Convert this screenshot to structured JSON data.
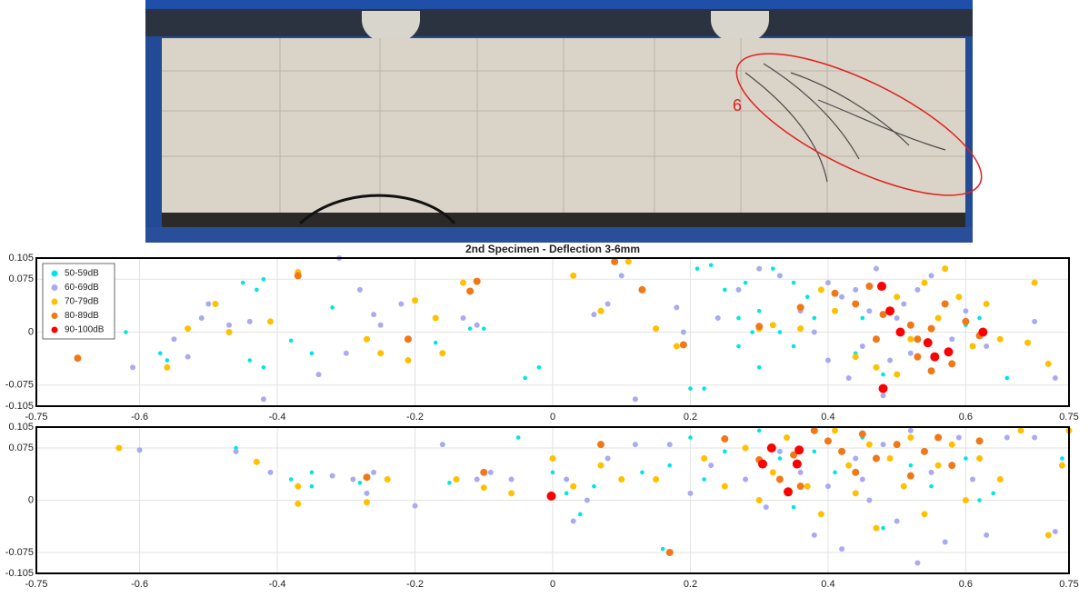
{
  "photo": {
    "annotation": "6"
  },
  "chart_data": [
    {
      "type": "scatter",
      "title": "2nd Specimen - Deflection 3-6mm",
      "xlim": [
        -0.75,
        0.75
      ],
      "xticks": [
        -0.75,
        -0.6,
        -0.4,
        -0.2,
        0,
        0.2,
        0.4,
        0.6,
        0.75
      ],
      "ylim": [
        -0.105,
        0.105
      ],
      "yticks": [
        -0.105,
        -0.075,
        0,
        0.075,
        0.105
      ],
      "grid": true,
      "legend": "upper left",
      "series": [
        {
          "name": "50-59dB",
          "color": "#00e5e5",
          "x": [
            -0.45,
            -0.42,
            -0.43,
            -0.56,
            -0.57,
            -0.62,
            -0.42,
            -0.44,
            -0.38,
            -0.32,
            -0.35,
            -0.17,
            -0.12,
            -0.1,
            -0.04,
            -0.02,
            0.21,
            0.23,
            0.25,
            0.28,
            0.3,
            0.32,
            0.35,
            0.37,
            0.2,
            0.22,
            0.27,
            0.3,
            0.33,
            0.35,
            0.38,
            0.45,
            0.44,
            0.48,
            0.6,
            0.62,
            0.66,
            0.27,
            0.29
          ],
          "values": [
            0.07,
            0.075,
            0.06,
            -0.04,
            -0.03,
            0,
            -0.05,
            -0.04,
            -0.012,
            0.035,
            -0.03,
            -0.015,
            0.005,
            0.005,
            -0.065,
            -0.05,
            0.09,
            0.095,
            0.06,
            0.07,
            0.03,
            0.09,
            0.07,
            0.05,
            -0.08,
            -0.08,
            -0.02,
            -0.05,
            0,
            -0.02,
            0.02,
            0.02,
            -0.03,
            -0.06,
            0.01,
            0.02,
            -0.065,
            0.02,
            0
          ]
        },
        {
          "name": "60-69dB",
          "color": "#aaaaf0",
          "x": [
            -0.61,
            -0.55,
            -0.51,
            -0.5,
            -0.53,
            -0.47,
            -0.42,
            -0.44,
            -0.31,
            -0.34,
            -0.28,
            -0.26,
            -0.3,
            -0.25,
            -0.22,
            -0.13,
            -0.11,
            0.06,
            0.08,
            0.1,
            0.12,
            0.18,
            0.19,
            0.24,
            0.27,
            0.3,
            0.33,
            0.36,
            0.38,
            0.4,
            0.42,
            0.44,
            0.45,
            0.46,
            0.47,
            0.48,
            0.49,
            0.5,
            0.51,
            0.52,
            0.53,
            0.55,
            0.58,
            0.6,
            0.63,
            0.7,
            0.73,
            0.43,
            0.4
          ],
          "values": [
            -0.05,
            -0.01,
            0.02,
            0.04,
            -0.035,
            0.01,
            -0.095,
            0.015,
            0.105,
            -0.06,
            0.06,
            0.025,
            -0.03,
            0.01,
            0.04,
            0.02,
            0.01,
            0.025,
            0.04,
            0.08,
            -0.095,
            0.035,
            0,
            0.02,
            0.06,
            0.09,
            0.08,
            0.03,
            0,
            -0.04,
            0.05,
            0.06,
            -0.02,
            0.03,
            0.09,
            -0.09,
            -0.04,
            0.02,
            0.04,
            -0.03,
            0.06,
            0.08,
            -0.01,
            0.03,
            -0.02,
            0.015,
            -0.065,
            -0.065,
            0.07
          ]
        },
        {
          "name": "70-79dB",
          "color": "#ffc000",
          "x": [
            -0.56,
            -0.53,
            -0.49,
            -0.47,
            -0.41,
            -0.37,
            -0.27,
            -0.25,
            -0.21,
            -0.2,
            -0.17,
            -0.16,
            -0.13,
            0.03,
            0.07,
            0.11,
            0.13,
            0.15,
            0.18,
            0.3,
            0.32,
            0.36,
            0.39,
            0.41,
            0.44,
            0.47,
            0.5,
            0.52,
            0.54,
            0.56,
            0.57,
            0.59,
            0.61,
            0.63,
            0.65,
            0.69,
            0.7,
            0.72,
            0.5
          ],
          "values": [
            -0.05,
            0.005,
            0.04,
            0,
            0.015,
            0.085,
            -0.01,
            -0.03,
            -0.04,
            0.045,
            0.02,
            -0.03,
            0.07,
            0.08,
            0.03,
            0.1,
            0.06,
            0.005,
            -0.02,
            0.005,
            0.01,
            0.005,
            0.06,
            0.03,
            -0.035,
            -0.05,
            0.05,
            -0.01,
            0.07,
            0.02,
            0.09,
            0.05,
            -0.02,
            0.04,
            -0.01,
            -0.015,
            0.07,
            -0.045,
            -0.06
          ]
        },
        {
          "name": "80-89dB",
          "color": "#f07818",
          "x": [
            -0.69,
            -0.37,
            -0.21,
            -0.12,
            -0.11,
            0.09,
            0.13,
            0.19,
            0.3,
            0.36,
            0.41,
            0.44,
            0.46,
            0.48,
            0.52,
            0.53,
            0.55,
            0.57,
            0.58,
            0.6,
            0.62,
            0.53,
            0.47,
            0.55
          ],
          "values": [
            -0.037,
            0.08,
            -0.01,
            0.058,
            0.072,
            0.1,
            0.06,
            -0.018,
            0.008,
            0.035,
            0.055,
            0.04,
            0.065,
            0.025,
            0.01,
            -0.01,
            0.005,
            0.04,
            -0.045,
            0.015,
            -0.005,
            -0.035,
            -0.01,
            -0.055
          ]
        },
        {
          "name": "90-100dB",
          "color": "#ff0000",
          "x": [
            0.478,
            0.49,
            0.505,
            0.545,
            0.555,
            0.575,
            0.625,
            0.48
          ],
          "values": [
            0.065,
            0.03,
            0,
            -0.015,
            -0.035,
            -0.028,
            0,
            -0.08
          ]
        }
      ]
    },
    {
      "type": "scatter",
      "xlim": [
        -0.75,
        0.75
      ],
      "xticks": [
        -0.75,
        -0.6,
        -0.4,
        -0.2,
        0,
        0.2,
        0.4,
        0.6,
        0.75
      ],
      "ylim": [
        -0.105,
        0.105
      ],
      "yticks": [
        -0.105,
        -0.075,
        0,
        0.075,
        0.105
      ],
      "grid": true,
      "series": [
        {
          "color": "#00e5e5",
          "x": [
            -0.46,
            -0.38,
            -0.35,
            -0.35,
            -0.28,
            -0.15,
            -0.05,
            0,
            0.02,
            0.04,
            0.06,
            0.13,
            0.17,
            0.2,
            0.22,
            0.25,
            0.3,
            0.33,
            0.35,
            0.41,
            0.45,
            0.48,
            0.52,
            0.55,
            0.6,
            0.62,
            0.64,
            0.7,
            0.74,
            0.16,
            0.38
          ],
          "values": [
            0.075,
            0.03,
            0.04,
            0.02,
            0.025,
            0.025,
            0.09,
            0.04,
            0.01,
            -0.02,
            0.02,
            0.04,
            0.05,
            0.09,
            0.03,
            0.07,
            0.1,
            0.06,
            -0.01,
            0.04,
            0.09,
            -0.04,
            0.05,
            0.02,
            0.06,
            0,
            0.01,
            0.09,
            0.06,
            -0.07,
            0.07
          ]
        },
        {
          "color": "#aaaaf0",
          "x": [
            -0.6,
            -0.46,
            -0.41,
            -0.32,
            -0.29,
            -0.27,
            -0.26,
            -0.2,
            -0.16,
            -0.11,
            -0.09,
            -0.06,
            0.02,
            0.03,
            0.05,
            0.08,
            0.12,
            0.17,
            0.2,
            0.23,
            0.28,
            0.31,
            0.33,
            0.36,
            0.38,
            0.4,
            0.42,
            0.44,
            0.46,
            0.48,
            0.5,
            0.52,
            0.53,
            0.55,
            0.57,
            0.59,
            0.61,
            0.63,
            0.66,
            0.7,
            0.73,
            0.45
          ],
          "values": [
            0.072,
            0.07,
            0.04,
            0.035,
            0.03,
            0.01,
            0.04,
            -0.008,
            0.08,
            0.03,
            0.04,
            0.03,
            0.03,
            -0.03,
            0,
            0.06,
            0.08,
            0.08,
            0.01,
            0.05,
            0.03,
            -0.01,
            0.07,
            0.04,
            -0.05,
            0.02,
            -0.07,
            0.06,
            0,
            0.08,
            -0.03,
            0.1,
            -0.09,
            0.04,
            -0.06,
            0.09,
            0.03,
            -0.05,
            0.09,
            0.09,
            -0.045,
            0.03
          ]
        },
        {
          "color": "#ffc000",
          "x": [
            -0.63,
            -0.43,
            -0.37,
            -0.37,
            -0.27,
            -0.24,
            -0.14,
            -0.1,
            -0.06,
            0,
            0.03,
            0.07,
            0.1,
            0.15,
            0.22,
            0.25,
            0.28,
            0.3,
            0.32,
            0.34,
            0.37,
            0.39,
            0.41,
            0.43,
            0.44,
            0.46,
            0.47,
            0.49,
            0.51,
            0.52,
            0.54,
            0.56,
            0.58,
            0.6,
            0.62,
            0.65,
            0.68,
            0.72,
            0.75,
            0.74
          ],
          "values": [
            0.075,
            0.055,
            0.02,
            -0.005,
            -0.003,
            0.03,
            0.03,
            0.018,
            0.01,
            0.06,
            0.02,
            0.05,
            0.03,
            0.03,
            0.06,
            0.02,
            0.075,
            0,
            0.04,
            0.09,
            0.02,
            -0.02,
            0.1,
            0.05,
            0.01,
            0.08,
            -0.04,
            0.06,
            0.02,
            0.09,
            -0.02,
            0.05,
            0.08,
            0,
            0.06,
            0.03,
            0.1,
            -0.05,
            0.1,
            0.05
          ]
        },
        {
          "color": "#f07818",
          "x": [
            -0.27,
            -0.1,
            0.07,
            0.17,
            0.25,
            0.3,
            0.33,
            0.35,
            0.38,
            0.4,
            0.42,
            0.44,
            0.45,
            0.47,
            0.5,
            0.52,
            0.54,
            0.56,
            0.58,
            0.62,
            0.36
          ],
          "values": [
            0.033,
            0.04,
            0.08,
            -0.075,
            0.088,
            0.058,
            0.03,
            0.065,
            0.1,
            0.085,
            0.07,
            0.04,
            0.095,
            0.06,
            0.08,
            0.035,
            0.07,
            0.09,
            0.05,
            0.085,
            0.02
          ]
        },
        {
          "color": "#ff0000",
          "x": [
            -0.002,
            0.305,
            0.318,
            0.342,
            0.355,
            0.358
          ],
          "values": [
            0.006,
            0.052,
            0.075,
            0.012,
            0.052,
            0.072
          ]
        }
      ]
    }
  ]
}
